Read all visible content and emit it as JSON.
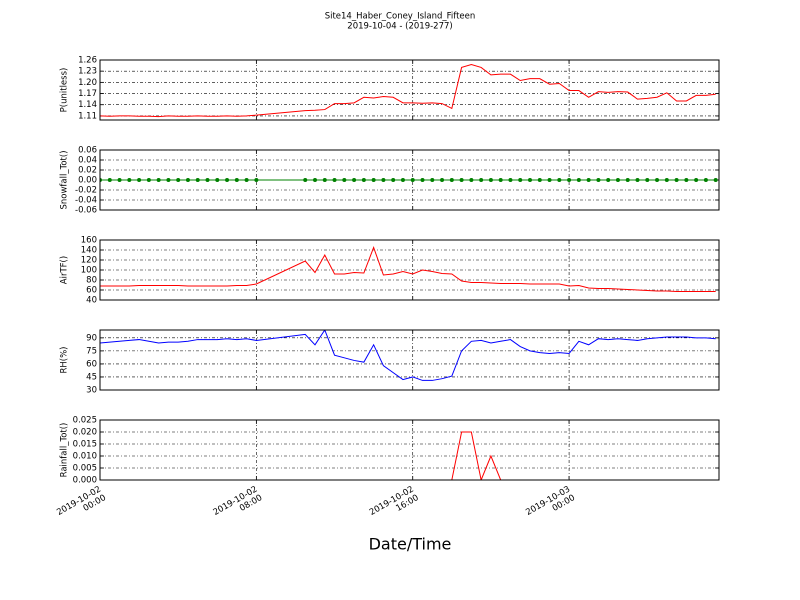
{
  "chart_data": {
    "type": "line",
    "title": "Site14_Haber_Coney_Island_Fifteen",
    "subtitle": "2019-10-04 - (2019-277)",
    "xlabel": "Date/Time",
    "grid": true,
    "x": [
      0,
      0.5,
      1,
      1.5,
      2,
      2.5,
      3,
      3.5,
      4,
      4.5,
      5,
      5.5,
      6,
      6.5,
      7,
      7.5,
      8,
      10.5,
      11,
      11.5,
      12,
      12.5,
      13,
      13.5,
      14,
      14.5,
      15,
      15.5,
      16,
      16.5,
      17,
      17.5,
      18,
      18.5,
      19,
      19.5,
      20,
      20.5,
      21,
      21.5,
      22,
      22.5,
      23,
      23.5,
      24,
      24.5,
      25,
      25.5,
      26,
      26.5,
      27,
      27.5,
      28,
      28.5,
      29,
      29.5,
      30,
      30.5,
      31,
      31.5
    ],
    "xlim": [
      0,
      31.67
    ],
    "xticks": [
      {
        "value": 0,
        "label": "2019-10-02 00:00"
      },
      {
        "value": 8,
        "label": "2019-10-02 08:00"
      },
      {
        "value": 16,
        "label": "2019-10-02 16:00"
      },
      {
        "value": 24,
        "label": "2019-10-03 00:00"
      }
    ],
    "panels": [
      {
        "ylabel": "P(unitless)",
        "color": "#ff0000",
        "ylim": [
          1.099,
          1.26
        ],
        "yticks": [
          {
            "value": 1.11,
            "label": "1.11"
          },
          {
            "value": 1.14,
            "label": "1.14"
          },
          {
            "value": 1.17,
            "label": "1.17"
          },
          {
            "value": 1.2,
            "label": "1.20"
          },
          {
            "value": 1.23,
            "label": "1.23"
          },
          {
            "value": 1.26,
            "label": "1.26"
          }
        ],
        "values": [
          1.11,
          1.109,
          1.11,
          1.11,
          1.109,
          1.109,
          1.108,
          1.11,
          1.109,
          1.109,
          1.11,
          1.109,
          1.109,
          1.11,
          1.109,
          1.11,
          1.112,
          1.124,
          1.125,
          1.127,
          1.143,
          1.143,
          1.145,
          1.16,
          1.158,
          1.162,
          1.16,
          1.145,
          1.145,
          1.144,
          1.145,
          1.143,
          1.13,
          1.24,
          1.248,
          1.24,
          1.22,
          1.222,
          1.222,
          1.205,
          1.21,
          1.21,
          1.195,
          1.197,
          1.178,
          1.178,
          1.16,
          1.175,
          1.173,
          1.175,
          1.174,
          1.155,
          1.157,
          1.16,
          1.172,
          1.15,
          1.15,
          1.165,
          1.165,
          1.168
        ]
      },
      {
        "ylabel": "Snowfall_Tot()",
        "color": "#008000",
        "markers": true,
        "ylim": [
          -0.06,
          0.06
        ],
        "yticks": [
          -0.06,
          -0.04,
          -0.02,
          {
            "value": 0,
            "label": "0.00"
          },
          0.02,
          0.04,
          0.06
        ],
        "values": [
          0,
          0,
          0,
          0,
          0,
          0,
          0,
          0,
          0,
          0,
          0,
          0,
          0,
          0,
          0,
          0,
          0,
          0,
          0,
          0,
          0,
          0,
          0,
          0,
          0,
          0,
          0,
          0,
          0,
          0,
          0,
          0,
          0,
          0,
          0,
          0,
          0,
          0,
          0,
          0,
          0,
          0,
          0,
          0,
          0,
          0,
          0,
          0,
          0,
          0,
          0,
          0,
          0,
          0,
          0,
          0,
          0,
          0,
          0,
          0
        ]
      },
      {
        "ylabel": "AirTF()",
        "color": "#ff0000",
        "ylim": [
          40,
          160
        ],
        "yticks": [
          40,
          60,
          80,
          100,
          120,
          140,
          160
        ],
        "values": [
          68,
          68,
          68,
          68,
          69,
          69,
          69,
          69,
          69,
          68,
          68,
          68,
          68,
          68,
          69,
          69,
          72,
          118,
          95,
          130,
          92,
          92,
          95,
          94,
          145,
          90,
          92,
          97,
          92,
          100,
          97,
          93,
          92,
          78,
          75,
          75,
          74,
          73,
          73,
          73,
          72,
          72,
          72,
          72,
          68,
          69,
          64,
          63,
          63,
          62,
          61,
          60,
          59,
          58,
          58,
          57,
          57,
          57,
          57,
          57
        ]
      },
      {
        "ylabel": "RH(%)",
        "color": "#0000ff",
        "ylim": [
          30,
          99
        ],
        "yticks": [
          30,
          45,
          60,
          75,
          90
        ],
        "values": [
          84,
          85,
          86,
          87,
          88,
          86,
          84,
          85,
          85,
          86,
          88,
          88,
          88,
          89,
          88,
          89,
          87,
          94,
          82,
          99,
          70,
          67,
          64,
          62,
          82,
          58,
          50,
          42,
          45,
          41,
          41,
          43,
          46,
          75,
          86,
          87,
          84,
          86,
          88,
          80,
          75,
          73,
          72,
          73,
          72,
          86,
          82,
          89,
          88,
          89,
          88,
          87,
          89,
          90,
          91,
          91,
          91,
          90,
          90,
          89
        ]
      },
      {
        "ylabel": "Rainfall_Tot()",
        "color": "#ff0000",
        "ylim": [
          0,
          0.025
        ],
        "yticks": [
          {
            "value": 0,
            "label": "0.000"
          },
          0.005,
          {
            "value": 0.01,
            "label": "0.010"
          },
          0.015,
          {
            "value": 0.02,
            "label": "0.020"
          },
          0.025
        ],
        "values": [
          0,
          0,
          0,
          0,
          0,
          0,
          0,
          0,
          0,
          0,
          0,
          0,
          0,
          0,
          0,
          0,
          0,
          0,
          0,
          0,
          0,
          0,
          0,
          0,
          0,
          0,
          0,
          0,
          0,
          0,
          0,
          0,
          0,
          0.02,
          0.02,
          0,
          0.01,
          0,
          0,
          0,
          0,
          0,
          0,
          0,
          0,
          0,
          0,
          0,
          0,
          0,
          0,
          0,
          0,
          0,
          0,
          0,
          0,
          0,
          0,
          0
        ]
      }
    ]
  }
}
